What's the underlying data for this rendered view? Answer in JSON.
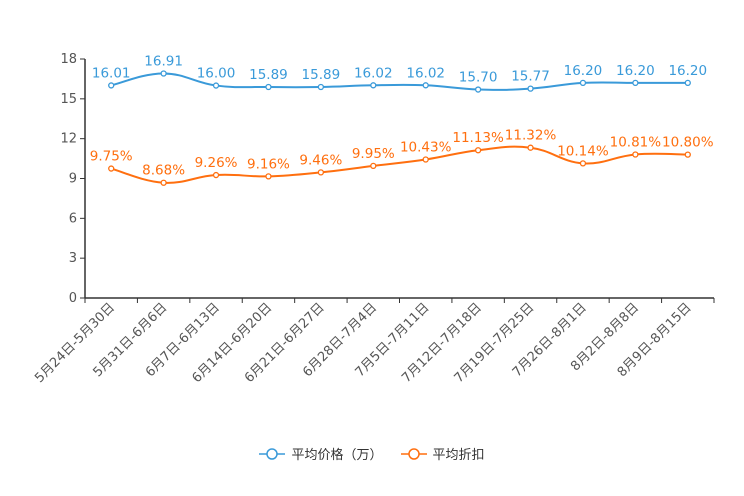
{
  "chart_data": {
    "type": "line",
    "title": "",
    "xlabel": "",
    "ylabel": "",
    "ylim": [
      0,
      18
    ],
    "yticks": [
      0,
      3,
      6,
      9,
      12,
      15,
      18
    ],
    "grid": false,
    "legend_position": "bottom-center",
    "categories": [
      "5月24日-5月30日",
      "5月31日-6月6日",
      "6月7日-6月13日",
      "6月14日-6月20日",
      "6月21日-6月27日",
      "6月28日-7月4日",
      "7月5日-7月11日",
      "7月12日-7月18日",
      "7月19日-7月25日",
      "7月26日-8月1日",
      "8月2日-8月8日",
      "8月9日-8月15日"
    ],
    "series": [
      {
        "name": "平均价格（万）",
        "color": "#3a9ad9",
        "suffix": "",
        "labels": [
          "16.01",
          "16.91",
          "16.00",
          "15.89",
          "15.89",
          "16.02",
          "16.02",
          "15.70",
          "15.77",
          "16.20",
          "16.20",
          "16.20"
        ],
        "values": [
          16.01,
          16.91,
          16.0,
          15.89,
          15.89,
          16.02,
          16.02,
          15.7,
          15.77,
          16.2,
          16.2,
          16.2
        ]
      },
      {
        "name": "平均折扣",
        "color": "#ff6f0f",
        "suffix": "%",
        "labels": [
          "9.75%",
          "8.68%",
          "9.26%",
          "9.16%",
          "9.46%",
          "9.95%",
          "10.43%",
          "11.13%",
          "11.32%",
          "10.14%",
          "10.81%",
          "10.80%"
        ],
        "values": [
          9.75,
          8.68,
          9.26,
          9.16,
          9.46,
          9.95,
          10.43,
          11.13,
          11.32,
          10.14,
          10.81,
          10.8
        ]
      }
    ]
  }
}
